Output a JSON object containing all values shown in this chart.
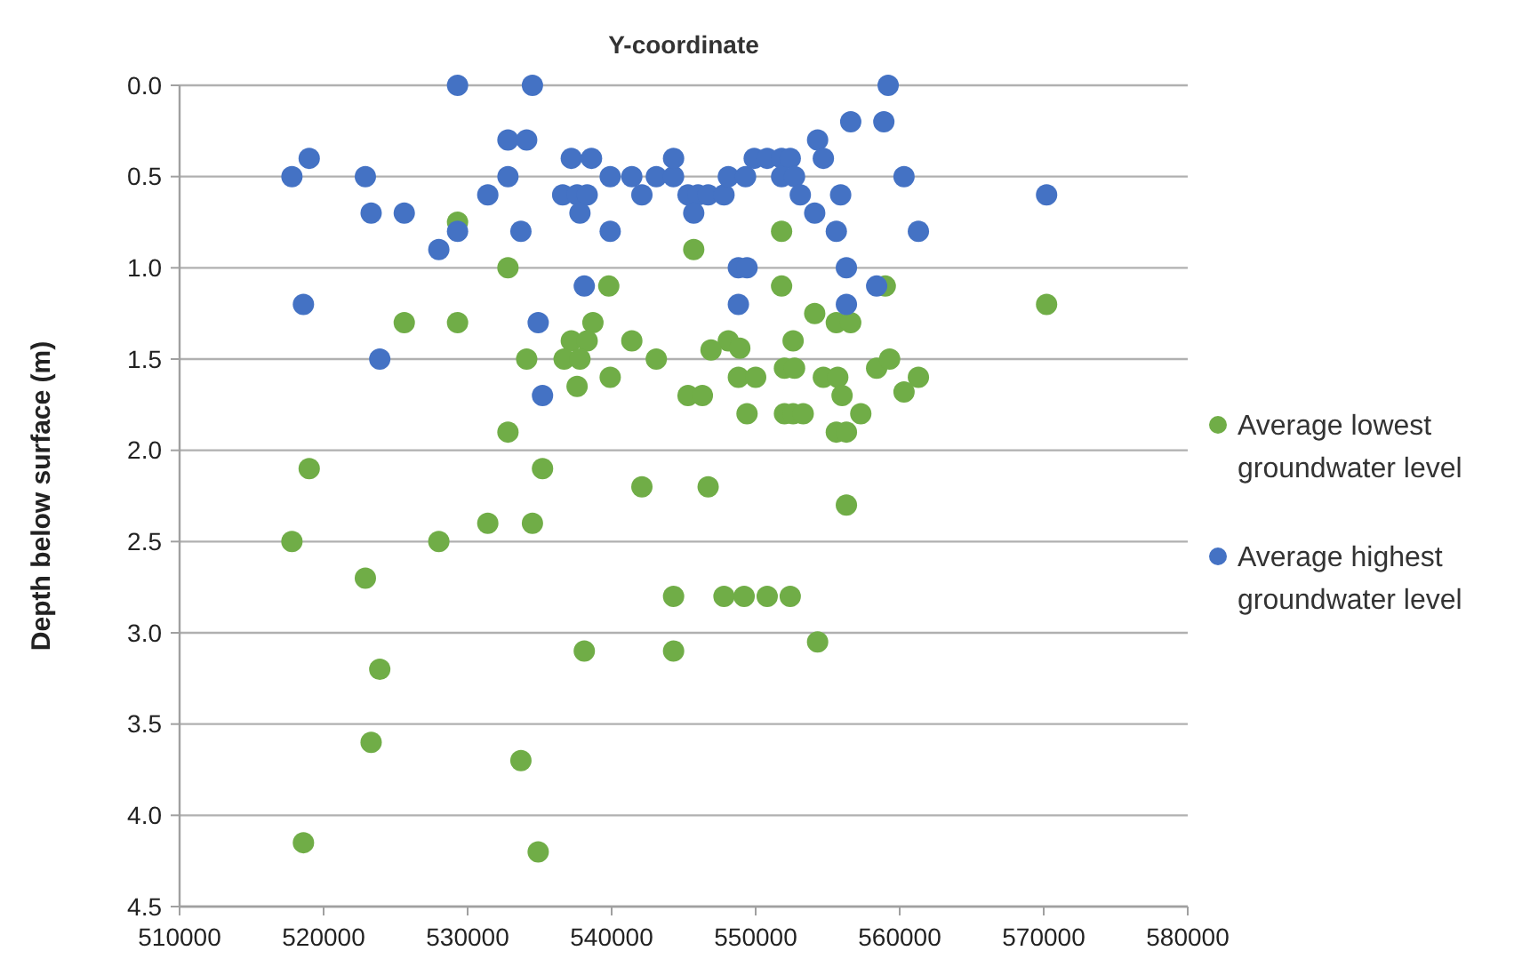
{
  "chart_data": {
    "type": "scatter",
    "title": "Y-coordinate",
    "ylabel": "Depth below surface (m)",
    "xlim": [
      510000,
      580000
    ],
    "xticks": [
      510000,
      520000,
      530000,
      540000,
      550000,
      560000,
      570000,
      580000
    ],
    "ylim": [
      4.5,
      0
    ],
    "yticks": [
      {
        "value": 0,
        "label": "0.0"
      },
      {
        "value": 0.5,
        "label": "0.5"
      },
      {
        "value": 1,
        "label": "1.0"
      },
      {
        "value": 1.5,
        "label": "1.5"
      },
      {
        "value": 2,
        "label": "2.0"
      },
      {
        "value": 2.5,
        "label": "2.5"
      },
      {
        "value": 3,
        "label": "3.0"
      },
      {
        "value": 3.5,
        "label": "3.5"
      },
      {
        "value": 4,
        "label": "4.0"
      },
      {
        "value": 4.5,
        "label": "4.5"
      }
    ],
    "grid": "y",
    "legend": "right",
    "marker": "circle",
    "series": [
      {
        "name": "Average lowest groundwater level",
        "color": "#70ad47",
        "x": [
          529300,
          532800,
          539800,
          545700,
          551800,
          551800,
          525600,
          529300,
          538700,
          537200,
          538300,
          541400,
          548100,
          548900,
          552600,
          554100,
          534100,
          536700,
          537800,
          543100,
          546900,
          537600,
          539900,
          548800,
          550000,
          552000,
          552700,
          554700,
          545300,
          546300,
          549400,
          552000,
          552600,
          553300,
          532800,
          519000,
          535200,
          542100,
          546700,
          559000,
          570200,
          555600,
          556600,
          555700,
          558400,
          559300,
          561300,
          560300,
          556000,
          557300,
          555600,
          556300,
          517800,
          528000,
          531400,
          534500,
          522900,
          544300,
          547800,
          549200,
          550800,
          552400,
          554300,
          538100,
          544300,
          523900,
          523300,
          533700,
          518600,
          534900,
          556300
        ],
        "values": [
          0.75,
          1.0,
          1.1,
          0.9,
          0.8,
          1.1,
          1.3,
          1.3,
          1.3,
          1.4,
          1.4,
          1.4,
          1.4,
          1.44,
          1.4,
          1.25,
          1.5,
          1.5,
          1.5,
          1.5,
          1.45,
          1.65,
          1.6,
          1.6,
          1.6,
          1.55,
          1.55,
          1.6,
          1.7,
          1.7,
          1.8,
          1.8,
          1.8,
          1.8,
          1.9,
          2.1,
          2.1,
          2.2,
          2.2,
          1.1,
          1.2,
          1.3,
          1.3,
          1.6,
          1.55,
          1.5,
          1.6,
          1.68,
          1.7,
          1.8,
          1.9,
          1.9,
          2.5,
          2.5,
          2.4,
          2.4,
          2.7,
          2.8,
          2.8,
          2.8,
          2.8,
          2.8,
          3.05,
          3.1,
          3.1,
          3.2,
          3.6,
          3.7,
          4.15,
          4.2,
          2.3
        ]
      },
      {
        "name": "Average highest groundwater level",
        "color": "#4472c4",
        "x": [
          529300,
          534500,
          517800,
          519000,
          522900,
          523300,
          525600,
          528000,
          529300,
          532800,
          534100,
          532800,
          531400,
          533700,
          518600,
          523900,
          534900,
          535200,
          538100,
          537200,
          538600,
          536600,
          537600,
          538300,
          537800,
          539900,
          539900,
          541400,
          542100,
          543100,
          544300,
          544300,
          545300,
          546000,
          546700,
          547800,
          545700,
          548100,
          549300,
          549900,
          550800,
          551800,
          552400,
          551800,
          552700,
          553100,
          554100,
          554300,
          554700,
          548800,
          549400,
          548800,
          559200,
          556600,
          558900,
          555900,
          560300,
          570200,
          555600,
          561300,
          556300,
          558400,
          556300
        ],
        "values": [
          0,
          0,
          0.5,
          0.4,
          0.5,
          0.7,
          0.7,
          0.9,
          0.8,
          0.3,
          0.3,
          0.5,
          0.6,
          0.8,
          1.2,
          1.5,
          1.3,
          1.7,
          1.1,
          0.4,
          0.4,
          0.6,
          0.6,
          0.6,
          0.7,
          0.5,
          0.8,
          0.5,
          0.6,
          0.5,
          0.5,
          0.4,
          0.6,
          0.6,
          0.6,
          0.6,
          0.7,
          0.5,
          0.5,
          0.4,
          0.4,
          0.4,
          0.4,
          0.5,
          0.5,
          0.6,
          0.7,
          0.3,
          0.4,
          1.0,
          1.0,
          1.2,
          0,
          0.2,
          0.2,
          0.6,
          0.5,
          0.6,
          0.8,
          0.8,
          1.0,
          1.1,
          1.2
        ]
      }
    ]
  }
}
